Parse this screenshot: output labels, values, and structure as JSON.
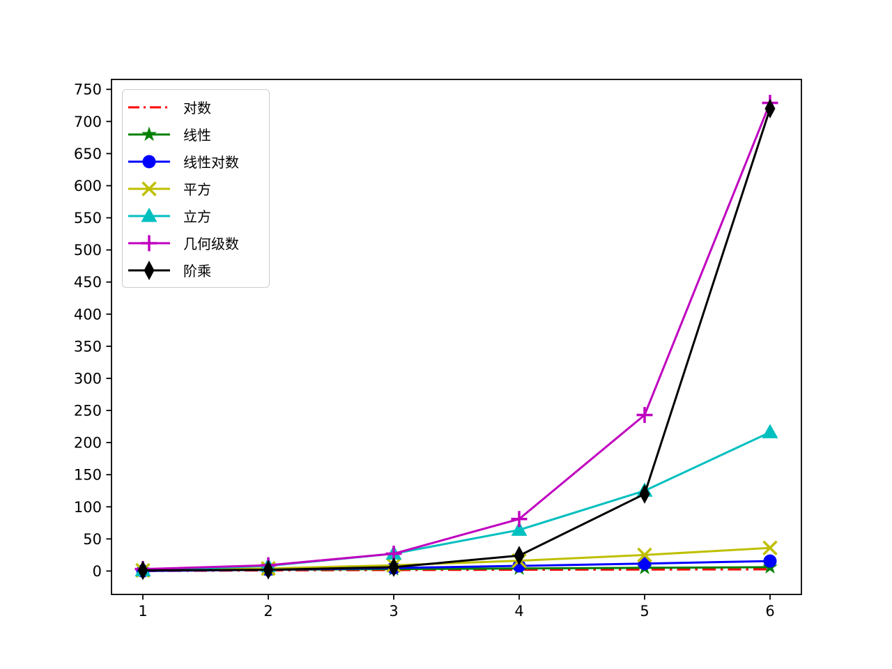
{
  "figure": {
    "background": "#ffffff",
    "title": "",
    "xlabel": "",
    "ylabel": ""
  },
  "chart_data": {
    "type": "line",
    "x": [
      1,
      2,
      3,
      4,
      5,
      6
    ],
    "xlim": [
      0.75,
      6.25
    ],
    "ylim": [
      -36.45,
      765.45
    ],
    "xtick_labels": [
      "1",
      "2",
      "3",
      "4",
      "5",
      "6"
    ],
    "xtick_values": [
      1,
      2,
      3,
      4,
      5,
      6
    ],
    "ytick_labels": [
      "0",
      "50",
      "100",
      "150",
      "200",
      "250",
      "300",
      "350",
      "400",
      "450",
      "500",
      "550",
      "600",
      "650",
      "700",
      "750"
    ],
    "ytick_values": [
      0,
      50,
      100,
      150,
      200,
      250,
      300,
      350,
      400,
      450,
      500,
      550,
      600,
      650,
      700,
      750
    ],
    "grid": false,
    "legend_position": "upper-left",
    "axis_color": "#000000",
    "series": [
      {
        "name": "对数",
        "color": "#ff0000",
        "linestyle": "dashdot",
        "marker": "none",
        "values": [
          0,
          1,
          1.585,
          2,
          2.322,
          2.585
        ]
      },
      {
        "name": "线性",
        "color": "#008000",
        "linestyle": "solid",
        "marker": "star",
        "values": [
          1,
          2,
          3,
          4,
          5,
          6
        ]
      },
      {
        "name": "线性对数",
        "color": "#0000ff",
        "linestyle": "solid",
        "marker": "circle",
        "values": [
          0,
          2,
          4.755,
          8,
          11.61,
          15.51
        ]
      },
      {
        "name": "平方",
        "color": "#bfbf00",
        "linestyle": "solid",
        "marker": "x",
        "values": [
          1,
          4,
          9,
          16,
          25,
          36
        ]
      },
      {
        "name": "立方",
        "color": "#00bfbf",
        "linestyle": "solid",
        "marker": "triangle-up",
        "values": [
          1,
          8,
          27,
          64,
          125,
          216
        ]
      },
      {
        "name": "几何级数",
        "color": "#bf00bf",
        "linestyle": "solid",
        "marker": "plus",
        "values": [
          3,
          9,
          27,
          81,
          243,
          729
        ]
      },
      {
        "name": "阶乘",
        "color": "#000000",
        "linestyle": "solid",
        "marker": "thin-diamond",
        "values": [
          1,
          2,
          6,
          24,
          120,
          720
        ]
      }
    ]
  }
}
